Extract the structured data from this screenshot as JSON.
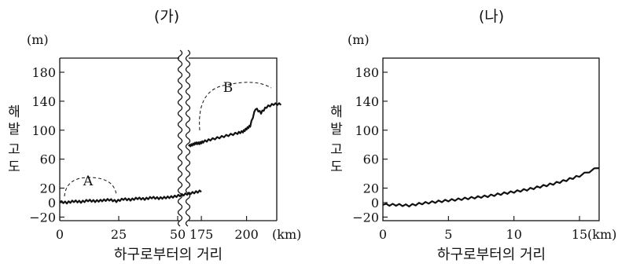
{
  "chart_data": [
    {
      "panel_label": "(가)",
      "type": "line",
      "y_unit": "(m)",
      "ylabel_chars": [
        "해",
        "발",
        "고",
        "도"
      ],
      "xlabel": "하구로부터의 거리",
      "x_unit": "(km)",
      "ylim": [
        -20,
        180
      ],
      "yticks": [
        -20,
        0,
        20,
        60,
        100,
        140,
        180
      ],
      "axis_break": true,
      "segments": [
        {
          "xlim": [
            0,
            60
          ],
          "xticks": [
            0,
            25,
            50
          ],
          "x": [
            0,
            3,
            6,
            9,
            12,
            15,
            18,
            21,
            24,
            27,
            30,
            33,
            36,
            39,
            42,
            45,
            48,
            51,
            54,
            57,
            60
          ],
          "y": [
            1,
            0,
            2,
            1,
            3,
            2,
            3,
            4,
            2,
            5,
            4,
            6,
            5,
            7,
            6,
            7,
            8,
            10,
            12,
            14,
            16
          ]
        },
        {
          "xlim": [
            168,
            219
          ],
          "xticks": [
            175,
            200
          ],
          "x": [
            168,
            170,
            172,
            174,
            176,
            180,
            185,
            190,
            195,
            198,
            200,
            202,
            205,
            208,
            211,
            215,
            219
          ],
          "y": [
            78,
            80,
            82,
            82,
            84,
            87,
            90,
            93,
            96,
            98,
            102,
            106,
            130,
            124,
            132,
            136,
            136
          ]
        }
      ],
      "annotations": [
        {
          "label": "A"
        },
        {
          "label": "B"
        }
      ]
    },
    {
      "panel_label": "(나)",
      "type": "line",
      "y_unit": "(m)",
      "ylabel_chars": [
        "해",
        "발",
        "고",
        "도"
      ],
      "xlabel": "하구로부터의 거리",
      "x_unit": "(km)",
      "ylim": [
        -20,
        180
      ],
      "yticks": [
        -20,
        0,
        20,
        60,
        100,
        140,
        180
      ],
      "xlim": [
        0,
        16.5
      ],
      "xticks": [
        0,
        5,
        10,
        15
      ],
      "x": [
        0,
        1,
        2,
        3,
        4,
        5,
        6,
        7,
        8,
        9,
        10,
        11,
        12,
        13,
        14,
        15,
        16.5
      ],
      "y": [
        -3,
        -3,
        -4,
        -1,
        1,
        3,
        5,
        7,
        9,
        12,
        15,
        18,
        22,
        26,
        31,
        37,
        49
      ]
    }
  ]
}
